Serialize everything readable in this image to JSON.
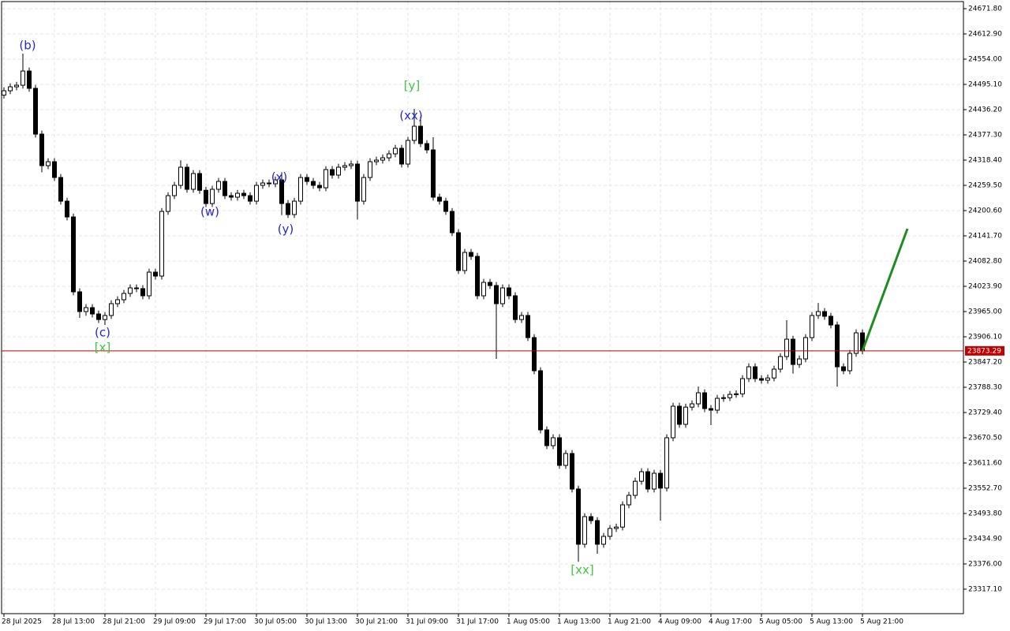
{
  "chart_data": {
    "type": "candlestick",
    "categories": [
      "28 Jul 2025",
      null,
      null,
      null,
      null,
      null,
      null,
      null,
      "28 Jul 13:00",
      null,
      null,
      null,
      null,
      null,
      null,
      null,
      "28 Jul 21:00",
      null,
      null,
      null,
      null,
      null,
      null,
      null,
      "29 Jul 09:00",
      null,
      null,
      null,
      null,
      null,
      null,
      null,
      "29 Jul 17:00",
      null,
      null,
      null,
      null,
      null,
      null,
      null,
      "30 Jul 05:00",
      null,
      null,
      null,
      null,
      null,
      null,
      null,
      "30 Jul 13:00",
      null,
      null,
      null,
      null,
      null,
      null,
      null,
      "30 Jul 21:00",
      null,
      null,
      null,
      null,
      null,
      null,
      null,
      "31 Jul 09:00",
      null,
      null,
      null,
      null,
      null,
      null,
      null,
      "31 Jul 17:00",
      null,
      null,
      null,
      null,
      null,
      null,
      null,
      "1 Aug 05:00",
      null,
      null,
      null,
      null,
      null,
      null,
      null,
      "1 Aug 13:00",
      null,
      null,
      null,
      null,
      null,
      null,
      null,
      "1 Aug 21:00",
      null,
      null,
      null,
      null,
      null,
      null,
      null,
      "4 Aug 09:00",
      null,
      null,
      null,
      null,
      null,
      null,
      null,
      "4 Aug 17:00",
      null,
      null,
      null,
      null,
      null,
      null,
      null,
      "5 Aug 05:00",
      null,
      null,
      null,
      null,
      null,
      null,
      null,
      "5 Aug 13:00",
      null,
      null,
      null,
      null,
      null,
      null,
      null,
      "5 Aug 21:00"
    ],
    "open": [
      24470.0,
      24480.3,
      24489.5,
      24493.2,
      24526.3,
      24485.9,
      24379.1,
      24305.5,
      24314.7,
      24277.9,
      24222.6,
      24185.8,
      24011.0,
      23965.0,
      23974.2,
      23959.4,
      23946.4,
      23955.8,
      23983.4,
      23992.6,
      24007.3,
      24020.2,
      24018.5,
      24001.8,
      24057.0,
      24047.8,
      24198.7,
      24235.5,
      24259.5,
      24301.8,
      24250.3,
      24287.1,
      24248.0,
      24217.1,
      24250.3,
      24268.7,
      24235.5,
      24231.9,
      24241.0,
      24235.5,
      24222.6,
      24259.5,
      24265.0,
      24263.2,
      24272.3,
      24217.1,
      24191.4,
      24222.6,
      24277.9,
      24268.7,
      24259.5,
      24253.9,
      24296.3,
      24283.4,
      24301.8,
      24305.5,
      24309.2,
      24222.6,
      24277.9,
      24314.7,
      24318.4,
      24323.8,
      24333.1,
      24346.0,
      24309.2,
      24364.4,
      24397.5,
      24357.0,
      24342.3,
      24231.9,
      24222.6,
      24198.7,
      24149.0,
      24060.7,
      24103.0,
      24093.8,
      24001.8,
      24033.1,
      24025.7,
      23983.4,
      24020.2,
      24001.8,
      23946.4,
      23955.8,
      23904.2,
      23826.9,
      23688.9,
      23652.1,
      23670.5,
      23606.0,
      23633.7,
      23550.8,
      23422.0,
      23486.4,
      23477.2,
      23422.0,
      23440.4,
      23458.8,
      23462.1,
      23514.0,
      23536.1,
      23569.0,
      23591.3,
      23550.8,
      23587.6,
      23553.0,
      23670.5,
      23744.1,
      23701.8,
      23742.0,
      23749.6,
      23775.4,
      23738.6,
      23734.9,
      23762.5,
      23764.0,
      23771.7,
      23773.0,
      23808.5,
      23836.1,
      23808.5,
      23804.8,
      23810.0,
      23830.6,
      23860.0,
      23900.5,
      23841.6,
      23854.5,
      23904.2,
      23955.8,
      23965.0,
      23954.0,
      23933.7,
      23836.1,
      23826.9,
      23867.4,
      23915.3
    ],
    "high": [
      24488.3,
      24497.5,
      24501.2,
      24567.0,
      24534.3,
      24493.9,
      24387.1,
      24322.7,
      24322.7,
      24285.9,
      24230.6,
      24193.8,
      24019.0,
      23982.2,
      23982.2,
      23967.4,
      23963.8,
      23991.4,
      24000.6,
      24015.3,
      24028.2,
      24028.2,
      24026.5,
      24065.0,
      24065.0,
      24206.7,
      24243.5,
      24267.5,
      24318.0,
      24309.8,
      24295.1,
      24295.1,
      24256.0,
      24258.3,
      24276.7,
      24276.7,
      24243.5,
      24249.0,
      24249.0,
      24243.5,
      24267.5,
      24273.0,
      24273.0,
      24280.3,
      24290.0,
      24225.1,
      24230.6,
      24285.9,
      24285.9,
      24276.7,
      24267.5,
      24304.3,
      24304.3,
      24309.8,
      24313.5,
      24317.2,
      24317.2,
      24285.9,
      24322.7,
      24326.4,
      24331.8,
      24341.1,
      24354.0,
      24354.0,
      24372.4,
      24438.0,
      24420.0,
      24365.0,
      24372.0,
      24239.9,
      24230.6,
      24206.7,
      24157.0,
      24111.0,
      24111.0,
      24101.8,
      24041.1,
      24041.1,
      24033.7,
      24028.2,
      24028.2,
      24009.8,
      23963.8,
      23963.8,
      23912.2,
      23834.9,
      23696.9,
      23678.5,
      23678.5,
      23641.7,
      23641.7,
      23558.8,
      23494.4,
      23494.4,
      23485.2,
      23448.4,
      23466.8,
      23470.1,
      23522.0,
      23544.1,
      23577.0,
      23599.3,
      23599.3,
      23595.6,
      23595.6,
      23678.5,
      23752.1,
      23752.1,
      23750.0,
      23757.6,
      23790.0,
      23783.4,
      23746.6,
      23770.5,
      23772.0,
      23779.7,
      23781.0,
      23816.5,
      23844.1,
      23844.1,
      23816.5,
      23818.0,
      23838.6,
      23868.0,
      23945.0,
      23908.5,
      23862.5,
      23912.2,
      23963.8,
      23985.0,
      23973.0,
      23962.0,
      23941.7,
      23844.1,
      23875.4,
      23923.3,
      23923.3
    ],
    "low": [
      24462.0,
      24472.3,
      24481.5,
      24485.2,
      24477.9,
      24371.1,
      24290.0,
      24297.5,
      24269.9,
      24214.6,
      24177.8,
      24003.0,
      23950.0,
      23955.0,
      23951.4,
      23938.4,
      23933.7,
      23947.8,
      23975.4,
      23984.6,
      23999.3,
      24010.5,
      23993.8,
      23993.8,
      24039.8,
      24039.8,
      24190.7,
      24227.5,
      24251.5,
      24242.3,
      24242.3,
      24240.0,
      24209.1,
      24209.1,
      24242.3,
      24227.5,
      24223.9,
      24223.9,
      24227.5,
      24214.6,
      24214.6,
      24251.5,
      24255.2,
      24255.2,
      24190.0,
      24183.4,
      24183.4,
      24214.6,
      24260.7,
      24251.5,
      24245.9,
      24245.9,
      24275.4,
      24275.4,
      24293.8,
      24297.5,
      24180.0,
      24214.6,
      24269.9,
      24306.7,
      24310.4,
      24315.8,
      24325.1,
      24301.2,
      24301.2,
      24356.4,
      24349.0,
      24334.3,
      24223.9,
      24214.6,
      24190.7,
      24141.0,
      24052.7,
      24052.7,
      24085.8,
      23993.8,
      23993.8,
      24017.7,
      23854.5,
      23975.4,
      23993.8,
      23938.4,
      23938.4,
      23896.2,
      23818.9,
      23680.9,
      23644.1,
      23644.1,
      23598.0,
      23598.0,
      23542.8,
      23381.0,
      23414.0,
      23469.2,
      23400.0,
      23414.0,
      23432.4,
      23450.8,
      23454.1,
      23506.0,
      23528.1,
      23561.0,
      23542.8,
      23542.8,
      23477.0,
      23545.0,
      23662.5,
      23693.8,
      23693.8,
      23734.0,
      23741.6,
      23730.6,
      23700.0,
      23726.9,
      23754.5,
      23756.0,
      23763.7,
      23765.0,
      23800.5,
      23800.5,
      23796.8,
      23796.8,
      23802.0,
      23822.6,
      23852.0,
      23820.0,
      23833.6,
      23846.5,
      23896.2,
      23947.8,
      23946.0,
      23925.7,
      23790.0,
      23818.9,
      23818.9,
      23859.4,
      23865.2
    ],
    "close": [
      24480.3,
      24489.5,
      24493.2,
      24526.3,
      24485.9,
      24379.1,
      24305.5,
      24314.7,
      24277.9,
      24222.6,
      24185.8,
      24011.0,
      23965.0,
      23974.2,
      23959.4,
      23946.4,
      23955.8,
      23983.4,
      23992.6,
      24007.3,
      24020.2,
      24018.5,
      24001.8,
      24057.0,
      24047.8,
      24198.7,
      24235.5,
      24259.5,
      24301.8,
      24250.3,
      24287.1,
      24248.0,
      24217.1,
      24250.3,
      24268.7,
      24235.5,
      24231.9,
      24241.0,
      24235.5,
      24222.6,
      24259.5,
      24265.0,
      24263.2,
      24272.3,
      24217.1,
      24191.4,
      24222.6,
      24277.9,
      24268.7,
      24259.5,
      24253.9,
      24296.3,
      24283.4,
      24301.8,
      24305.5,
      24309.2,
      24222.6,
      24277.9,
      24314.7,
      24318.4,
      24323.8,
      24333.1,
      24346.0,
      24309.2,
      24364.4,
      24397.5,
      24357.0,
      24342.3,
      24231.9,
      24222.6,
      24198.7,
      24149.0,
      24060.7,
      24103.0,
      24093.8,
      24001.8,
      24033.1,
      24025.7,
      23983.4,
      24020.2,
      24001.8,
      23946.4,
      23955.8,
      23904.2,
      23826.9,
      23688.9,
      23652.1,
      23670.5,
      23606.0,
      23633.7,
      23550.8,
      23422.0,
      23486.4,
      23477.2,
      23422.0,
      23440.4,
      23458.8,
      23462.1,
      23514.0,
      23536.1,
      23569.0,
      23591.3,
      23550.8,
      23587.6,
      23553.0,
      23670.5,
      23744.1,
      23701.8,
      23742.0,
      23749.6,
      23775.4,
      23738.6,
      23734.9,
      23762.5,
      23764.0,
      23771.7,
      23773.0,
      23808.5,
      23836.1,
      23808.5,
      23804.8,
      23810.0,
      23830.6,
      23860.0,
      23900.5,
      23841.6,
      23854.5,
      23904.2,
      23955.8,
      23965.0,
      23954.0,
      23933.7,
      23836.1,
      23826.9,
      23867.4,
      23915.3,
      23873.29
    ],
    "up_color": "#ffffff",
    "down_color": "#000000",
    "ylim": [
      23260.0,
      24688.4
    ],
    "yticks": [
      {
        "value": 24671.8,
        "label": "24671.80"
      },
      {
        "value": 24612.9,
        "label": "24612.90"
      },
      {
        "value": 24554.0,
        "label": "24554.00"
      },
      {
        "value": 24495.1,
        "label": "24495.10"
      },
      {
        "value": 24436.2,
        "label": "24436.20"
      },
      {
        "value": 24377.3,
        "label": "24377.30"
      },
      {
        "value": 24318.4,
        "label": "24318.40"
      },
      {
        "value": 24259.5,
        "label": "24259.50"
      },
      {
        "value": 24200.6,
        "label": "24200.60"
      },
      {
        "value": 24141.7,
        "label": "24141.70"
      },
      {
        "value": 24082.8,
        "label": "24082.80"
      },
      {
        "value": 24023.9,
        "label": "24023.90"
      },
      {
        "value": 23965.0,
        "label": "23965.00"
      },
      {
        "value": 23906.1,
        "label": "23906.10"
      },
      {
        "value": 23847.2,
        "label": "23847.20"
      },
      {
        "value": 23788.3,
        "label": "23788.30"
      },
      {
        "value": 23729.4,
        "label": "23729.40"
      },
      {
        "value": 23670.5,
        "label": "23670.50"
      },
      {
        "value": 23611.6,
        "label": "23611.60"
      },
      {
        "value": 23552.7,
        "label": "23552.70"
      },
      {
        "value": 23493.8,
        "label": "23493.80"
      },
      {
        "value": 23434.9,
        "label": "23434.90"
      },
      {
        "value": 23376.0,
        "label": "23376.00"
      },
      {
        "value": 23317.1,
        "label": "23317.10"
      }
    ],
    "grid": true,
    "current_price": {
      "value": 23873.29,
      "label": "23873.29",
      "color": "#c00000"
    },
    "projection": {
      "values": [
        23873.29,
        24158.2
      ],
      "color": "#1e8c1e"
    },
    "annotations": [
      {
        "text": "(b)",
        "color": "#2525e0"
      },
      {
        "text": "(c)",
        "color": "#2525e0"
      },
      {
        "text": "[x]",
        "color": "#3cc83c"
      },
      {
        "text": "(w)",
        "color": "#2525e0"
      },
      {
        "text": "(x)",
        "color": "#2525e0"
      },
      {
        "text": "(y)",
        "color": "#2525e0"
      },
      {
        "text": "[y]",
        "color": "#3cc83c"
      },
      {
        "text": "(xx)",
        "color": "#2525e0"
      },
      {
        "text": "[xx]",
        "color": "#3cc83c"
      }
    ]
  }
}
